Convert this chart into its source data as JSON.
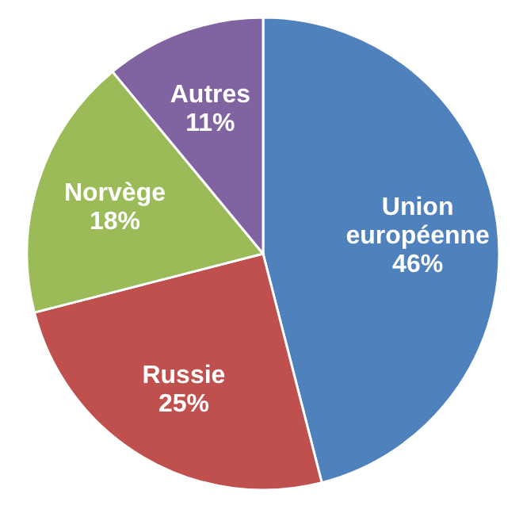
{
  "chart_data": {
    "type": "pie",
    "categories": [
      "Union européenne",
      "Russie",
      "Norvège",
      "Autres"
    ],
    "values": [
      46,
      25,
      18,
      11
    ],
    "value_labels": [
      "46%",
      "25%",
      "18%",
      "11%"
    ],
    "colors": [
      "#4f81bd",
      "#c0504d",
      "#9bbb59",
      "#8064a2"
    ]
  }
}
